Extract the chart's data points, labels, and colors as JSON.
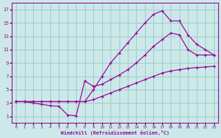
{
  "xlabel": "Windchill (Refroidissement éolien,°C)",
  "bg_color": "#cce8e8",
  "grid_color": "#99cccc",
  "line_color": "#990099",
  "xlim": [
    -0.5,
    23.5
  ],
  "ylim": [
    0,
    18
  ],
  "xticks": [
    0,
    1,
    2,
    3,
    4,
    5,
    6,
    7,
    8,
    9,
    10,
    11,
    12,
    13,
    14,
    15,
    16,
    17,
    18,
    19,
    20,
    21,
    22,
    23
  ],
  "yticks": [
    1,
    3,
    5,
    7,
    9,
    11,
    13,
    15,
    17
  ],
  "curve1_x": [
    0,
    1,
    2,
    3,
    4,
    5,
    6,
    7,
    8,
    9,
    10,
    11,
    12,
    13,
    14,
    15,
    16,
    17,
    18,
    19,
    20,
    21,
    22,
    23
  ],
  "curve1_y": [
    3.2,
    3.2,
    3.2,
    3.2,
    3.2,
    3.2,
    3.2,
    3.2,
    3.2,
    3.5,
    4.0,
    4.5,
    5.0,
    5.5,
    6.0,
    6.5,
    7.0,
    7.5,
    7.8,
    8.0,
    8.2,
    8.3,
    8.4,
    8.5
  ],
  "curve2_x": [
    0,
    1,
    2,
    3,
    4,
    5,
    6,
    7,
    8,
    9,
    10,
    11,
    12,
    13,
    14,
    15,
    16,
    17,
    18,
    19,
    20,
    21,
    22,
    23
  ],
  "curve2_y": [
    3.2,
    3.2,
    3.0,
    2.8,
    2.6,
    2.5,
    1.2,
    1.1,
    6.3,
    5.5,
    5.8,
    6.5,
    7.2,
    8.0,
    9.0,
    10.2,
    11.5,
    12.5,
    13.5,
    13.2,
    11.0,
    10.2,
    10.2,
    10.2
  ],
  "curve3_x": [
    0,
    1,
    2,
    3,
    4,
    5,
    6,
    7,
    8,
    9,
    10,
    11,
    12,
    13,
    14,
    15,
    16,
    17,
    18,
    19,
    20,
    21,
    22,
    23
  ],
  "curve3_y": [
    3.2,
    3.2,
    3.2,
    3.2,
    3.2,
    3.2,
    3.2,
    3.2,
    3.2,
    5.0,
    7.0,
    9.0,
    10.5,
    12.0,
    13.5,
    15.0,
    16.3,
    16.8,
    15.3,
    15.3,
    13.2,
    11.8,
    11.0,
    10.2
  ]
}
